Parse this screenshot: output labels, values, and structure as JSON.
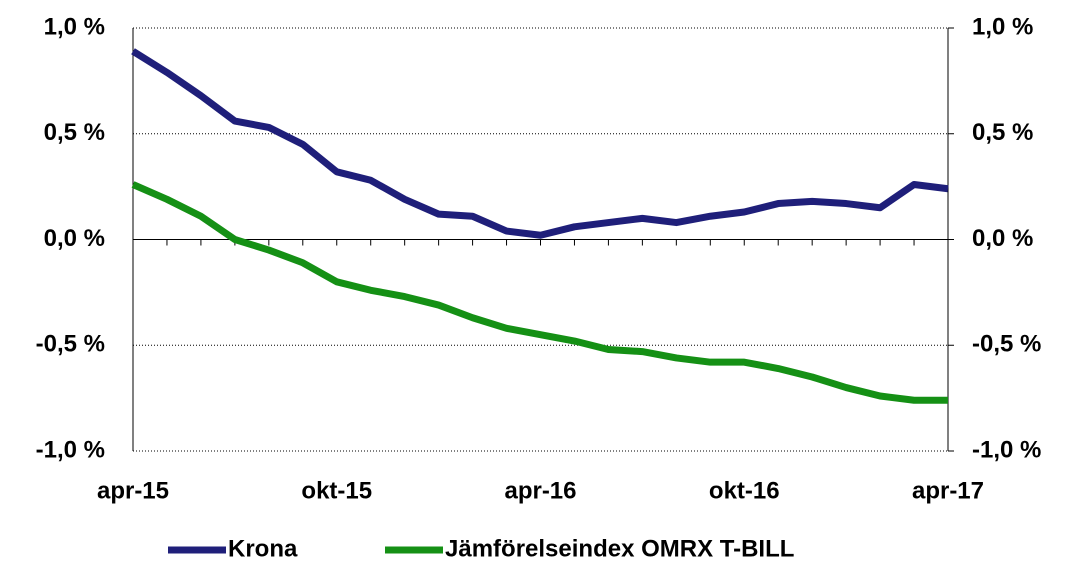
{
  "chart_data": {
    "type": "line",
    "categories": [
      "apr-15",
      null,
      null,
      null,
      null,
      null,
      "okt-15",
      null,
      null,
      null,
      null,
      null,
      "apr-16",
      null,
      null,
      null,
      null,
      null,
      "okt-16",
      null,
      null,
      null,
      null,
      null,
      "apr-17"
    ],
    "series": [
      {
        "name": "Krona",
        "color": "#1f1f7a",
        "values": [
          0.89,
          0.79,
          0.68,
          0.56,
          0.53,
          0.45,
          0.32,
          0.28,
          0.19,
          0.12,
          0.11,
          0.04,
          0.02,
          0.06,
          0.08,
          0.1,
          0.08,
          0.11,
          0.13,
          0.17,
          0.18,
          0.17,
          0.15,
          0.26,
          0.24
        ]
      },
      {
        "name": "Jämförelseindex OMRX T-BILL",
        "color": "#159015",
        "values": [
          0.26,
          0.19,
          0.11,
          0.0,
          -0.05,
          -0.11,
          -0.2,
          -0.24,
          -0.27,
          -0.31,
          -0.37,
          -0.42,
          -0.45,
          -0.48,
          -0.52,
          -0.53,
          -0.56,
          -0.58,
          -0.58,
          -0.61,
          -0.65,
          -0.7,
          -0.74,
          -0.76,
          -0.76
        ]
      }
    ],
    "ylim": [
      -1.0,
      1.0
    ],
    "yticks": [
      {
        "value": -1.0,
        "label": "-1,0 %"
      },
      {
        "value": -0.5,
        "label": "-0,5 %"
      },
      {
        "value": 0,
        "label": "0,0 %"
      },
      {
        "value": 0.5,
        "label": "0,5 %"
      },
      {
        "value": 1.0,
        "label": "1,0 %"
      }
    ],
    "y2lim": [
      -1.0,
      1.0
    ],
    "y2ticks": [
      {
        "value": -1.0,
        "label": "-1,0 %"
      },
      {
        "value": -0.5,
        "label": "-0,5 %"
      },
      {
        "value": 0,
        "label": "0,0 %"
      },
      {
        "value": 0.5,
        "label": "0,5 %"
      },
      {
        "value": 1.0,
        "label": "1,0 %"
      }
    ],
    "grid": true,
    "legend": "bottom"
  }
}
